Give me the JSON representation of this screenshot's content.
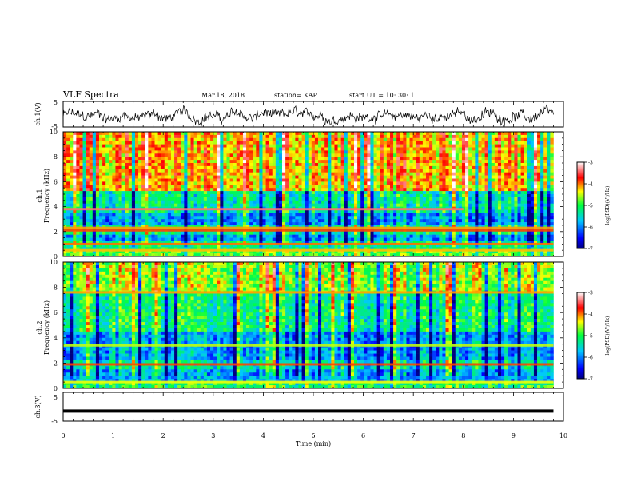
{
  "header": {
    "title": "VLF Spectra",
    "date": "Mar.18, 2018",
    "station": "station= KAP",
    "start_ut": "start  UT =   10: 30: 1"
  },
  "chart_data": [
    {
      "type": "line",
      "ylabel": "ch.1(V)",
      "ylim": [
        -5,
        5
      ],
      "yticks": [
        "5",
        "-5"
      ],
      "xlim": [
        0,
        10
      ],
      "series": [
        {
          "x_range": [
            0,
            9.8
          ],
          "mean": -0.8,
          "amplitude": 2.3
        }
      ]
    },
    {
      "type": "heatmap",
      "ylabel_channel": "ch.1",
      "ylabel": "Frequency  (kHz)",
      "ylim": [
        0,
        10
      ],
      "yticks": [
        "0",
        "2",
        "4",
        "6",
        "8",
        "10"
      ],
      "xlim": [
        0,
        10
      ],
      "data_x_range": [
        0,
        9.8
      ],
      "colorbar": {
        "label": "log(PSD)(V²/Hz)",
        "range": [
          -7,
          -3
        ],
        "ticks": [
          "-3",
          "-4",
          "-5",
          "-6",
          "-7"
        ]
      },
      "bands_khz": [
        {
          "range": [
            0,
            0.5
          ],
          "level": 0.55
        },
        {
          "range": [
            0.5,
            1.2
          ],
          "level": 0.45
        },
        {
          "range": [
            1.2,
            1.8
          ],
          "level": 0.3
        },
        {
          "range": [
            1.8,
            2.4
          ],
          "level": 0.45
        },
        {
          "range": [
            2.4,
            3.4
          ],
          "level": 0.28
        },
        {
          "range": [
            3.4,
            5.2
          ],
          "level": 0.42
        },
        {
          "range": [
            5.2,
            10
          ],
          "level": 0.72
        }
      ],
      "lines_khz": [
        {
          "f": 3.8,
          "level": 0.9,
          "x_end": 8.0
        },
        {
          "f": 2.1,
          "level": 0.78
        },
        {
          "f": 2.3,
          "level": 0.72
        },
        {
          "f": 1.0,
          "level": 0.75
        },
        {
          "f": 0.5,
          "level": 0.7
        }
      ]
    },
    {
      "type": "heatmap",
      "ylabel_channel": "ch.2",
      "ylabel": "Frequency  (kHz)",
      "ylim": [
        0,
        10
      ],
      "yticks": [
        "0",
        "2",
        "4",
        "6",
        "8",
        "10"
      ],
      "xlim": [
        0,
        10
      ],
      "data_x_range": [
        0,
        9.8
      ],
      "colorbar": {
        "label": "log(PSD)(V²/Hz)",
        "range": [
          -7,
          -3
        ],
        "ticks": [
          "-3",
          "-4",
          "-5",
          "-6",
          "-7"
        ]
      },
      "bands_khz": [
        {
          "range": [
            0,
            0.5
          ],
          "level": 0.5
        },
        {
          "range": [
            0.5,
            1.6
          ],
          "level": 0.3
        },
        {
          "range": [
            1.6,
            2.2
          ],
          "level": 0.4
        },
        {
          "range": [
            2.2,
            4.5
          ],
          "level": 0.28
        },
        {
          "range": [
            4.5,
            7.5
          ],
          "level": 0.45
        },
        {
          "range": [
            7.5,
            10
          ],
          "level": 0.6
        }
      ],
      "lines_khz": [
        {
          "f": 1.9,
          "level": 0.78
        },
        {
          "f": 3.4,
          "level": 0.62
        },
        {
          "f": 7.6,
          "level": 0.72
        },
        {
          "f": 0.5,
          "level": 0.65
        }
      ]
    },
    {
      "type": "line",
      "ylabel": "ch.3(V)",
      "ylim": [
        -5,
        5
      ],
      "yticks": [
        "5",
        "-5"
      ],
      "xlim": [
        0,
        10
      ],
      "series": [
        {
          "x_range": [
            0,
            9.8
          ],
          "value": -1.5
        }
      ]
    }
  ],
  "xaxis": {
    "label": "Time  (min)",
    "ticks": [
      "0",
      "1",
      "2",
      "3",
      "4",
      "5",
      "6",
      "7",
      "8",
      "9",
      "10"
    ]
  }
}
